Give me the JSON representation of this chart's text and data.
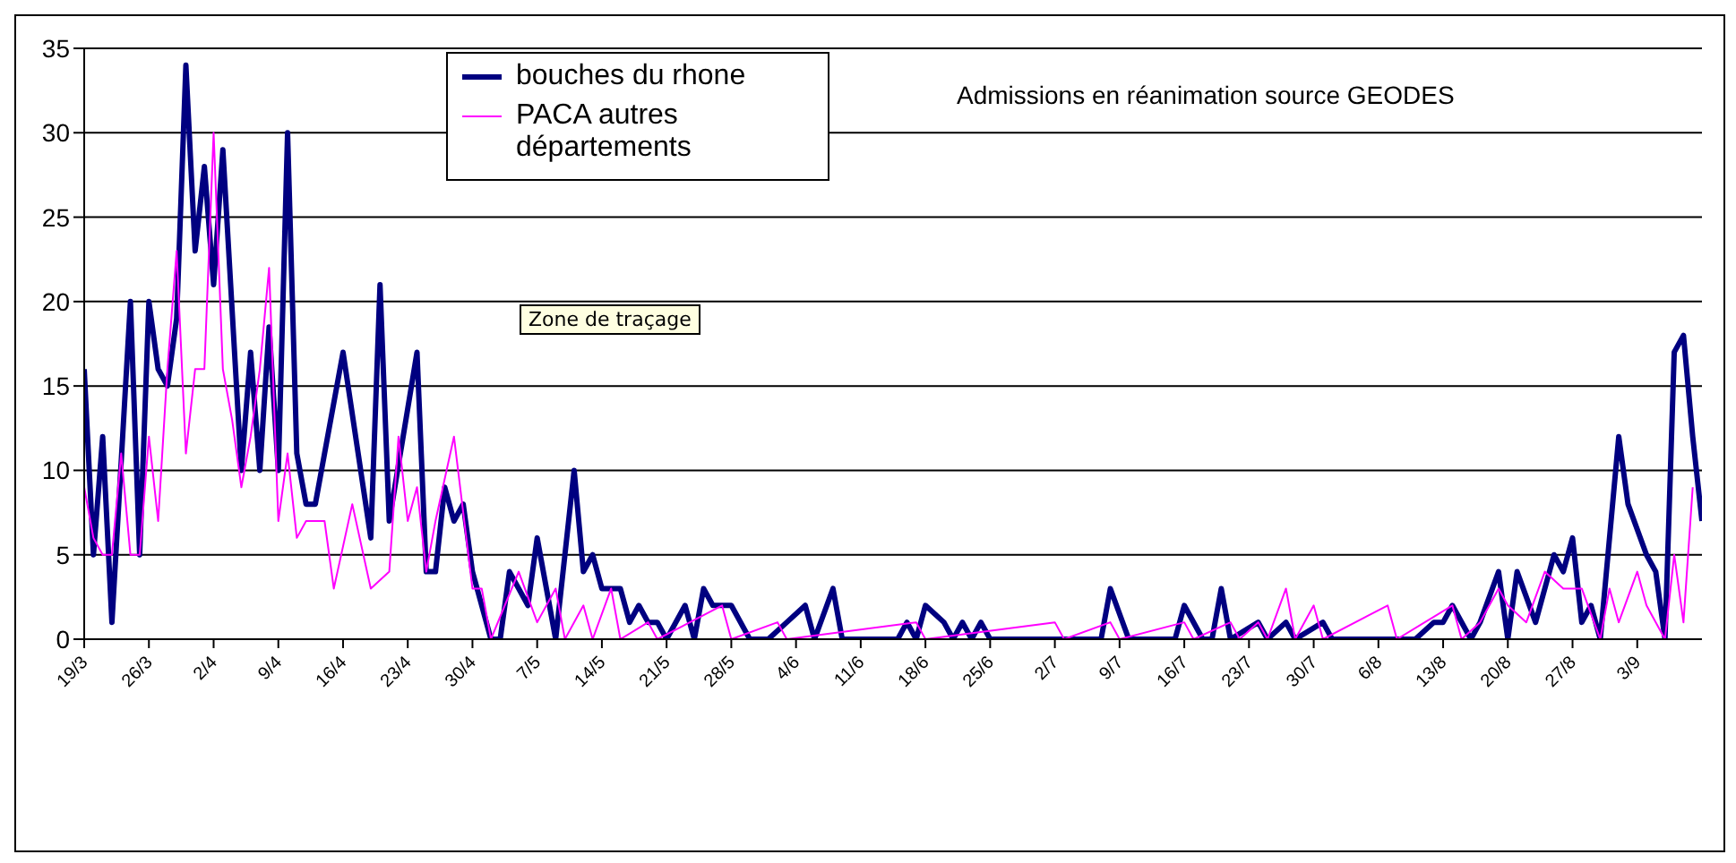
{
  "chart_data": {
    "type": "line",
    "title": "Admissions en réanimation source GEODES",
    "annotations": [
      "Zone de traçage"
    ],
    "xlim": [
      "--03-19",
      "--09-10"
    ],
    "xticks": [
      {
        "value": "--03-19",
        "label": "19/3"
      },
      {
        "value": "--03-26",
        "label": "26/3"
      },
      {
        "value": "--04-02",
        "label": "2/4"
      },
      {
        "value": "--04-09",
        "label": "9/4"
      },
      {
        "value": "--04-16",
        "label": "16/4"
      },
      {
        "value": "--04-23",
        "label": "23/4"
      },
      {
        "value": "--04-30",
        "label": "30/4"
      },
      {
        "value": "--05-07",
        "label": "7/5"
      },
      {
        "value": "--05-14",
        "label": "14/5"
      },
      {
        "value": "--05-21",
        "label": "21/5"
      },
      {
        "value": "--05-28",
        "label": "28/5"
      },
      {
        "value": "--06-04",
        "label": "4/6"
      },
      {
        "value": "--06-11",
        "label": "11/6"
      },
      {
        "value": "--06-18",
        "label": "18/6"
      },
      {
        "value": "--06-25",
        "label": "25/6"
      },
      {
        "value": "--07-02",
        "label": "2/7"
      },
      {
        "value": "--07-09",
        "label": "9/7"
      },
      {
        "value": "--07-16",
        "label": "16/7"
      },
      {
        "value": "--07-23",
        "label": "23/7"
      },
      {
        "value": "--07-30",
        "label": "30/7"
      },
      {
        "value": "--08-06",
        "label": "6/8"
      },
      {
        "value": "--08-13",
        "label": "13/8"
      },
      {
        "value": "--08-20",
        "label": "20/8"
      },
      {
        "value": "--08-27",
        "label": "27/8"
      },
      {
        "value": "--09-03",
        "label": "3/9"
      }
    ],
    "ylim": [
      0,
      35
    ],
    "yticks": [
      0,
      5,
      10,
      15,
      20,
      25,
      30,
      35
    ],
    "grid": "y",
    "legend": "top",
    "marker": "none",
    "line_style": "solid",
    "series": [
      {
        "name": "bouches du rhone",
        "color": "#000080",
        "x": [
          "--03-19",
          "--03-20",
          "--03-21",
          "--03-22",
          "--03-24",
          "--03-25",
          "--03-26",
          "--03-27",
          "--03-28",
          "--03-29",
          "--03-30",
          "--03-31",
          "--04-01",
          "--04-02",
          "--04-03",
          "--04-05",
          "--04-06",
          "--04-07",
          "--04-08",
          "--04-09",
          "--04-10",
          "--04-11",
          "--04-12",
          "--04-13",
          "--04-16",
          "--04-19",
          "--04-20",
          "--04-21",
          "--04-24",
          "--04-25",
          "--04-26",
          "--04-27",
          "--04-28",
          "--04-29",
          "--04-30",
          "--05-02",
          "--05-03",
          "--05-04",
          "--05-06",
          "--05-07",
          "--05-09",
          "--05-11",
          "--05-12",
          "--05-13",
          "--05-14",
          "--05-16",
          "--05-17",
          "--05-18",
          "--05-19",
          "--05-20",
          "--05-21",
          "--05-23",
          "--05-24",
          "--05-25",
          "--05-26",
          "--05-28",
          "--05-30",
          "--06-01",
          "--06-03",
          "--06-05",
          "--06-06",
          "--06-08",
          "--06-09",
          "--06-15",
          "--06-16",
          "--06-17",
          "--06-18",
          "--06-20",
          "--06-21",
          "--06-22",
          "--06-23",
          "--06-24",
          "--06-25",
          "--07-07",
          "--07-08",
          "--07-10",
          "--07-15",
          "--07-16",
          "--07-18",
          "--07-19",
          "--07-20",
          "--07-21",
          "--07-24",
          "--07-25",
          "--07-27",
          "--07-28",
          "--07-31",
          "--08-01",
          "--08-10",
          "--08-12",
          "--08-13",
          "--08-14",
          "--08-16",
          "--08-17",
          "--08-19",
          "--08-20",
          "--08-21",
          "--08-23",
          "--08-25",
          "--08-26",
          "--08-27",
          "--08-28",
          "--08-29",
          "--08-30",
          "--09-01",
          "--09-02",
          "--09-04",
          "--09-05",
          "--09-06",
          "--09-07",
          "--09-08",
          "--09-09",
          "--09-10"
        ],
        "values": [
          16,
          5,
          12,
          1,
          20,
          5,
          20,
          16,
          15,
          19,
          34,
          23,
          28,
          21,
          29,
          10,
          17,
          10,
          18.5,
          10,
          30,
          11,
          8,
          8,
          17,
          6,
          21,
          7,
          17,
          4,
          4,
          9,
          7,
          8,
          4,
          0,
          0,
          4,
          2,
          6,
          0,
          10,
          4,
          5,
          3,
          3,
          1,
          2,
          1,
          1,
          0,
          2,
          0,
          3,
          2,
          2,
          0,
          0,
          1,
          2,
          0,
          3,
          0,
          0,
          1,
          0,
          2,
          1,
          0,
          1,
          0,
          1,
          0,
          0,
          3,
          0,
          0,
          2,
          0,
          0,
          3,
          0,
          1,
          0,
          1,
          0,
          1,
          0,
          0,
          1,
          1,
          2,
          0,
          1,
          4,
          0,
          4,
          1,
          5,
          4,
          6,
          1,
          2,
          0,
          12,
          8,
          5,
          4,
          0,
          17,
          18,
          12,
          7
        ]
      },
      {
        "name": "PACA autres départements",
        "color": "#ff00ff",
        "x": [
          "--03-19",
          "--03-20",
          "--03-21",
          "--03-22",
          "--03-23",
          "--03-24",
          "--03-25",
          "--03-26",
          "--03-27",
          "--03-28",
          "--03-29",
          "--03-30",
          "--03-31",
          "--04-01",
          "--04-02",
          "--04-03",
          "--04-04",
          "--04-05",
          "--04-06",
          "--04-07",
          "--04-08",
          "--04-09",
          "--04-10",
          "--04-11",
          "--04-12",
          "--04-14",
          "--04-15",
          "--04-17",
          "--04-19",
          "--04-21",
          "--04-22",
          "--04-23",
          "--04-24",
          "--04-25",
          "--04-26",
          "--04-28",
          "--04-30",
          "--05-01",
          "--05-02",
          "--05-05",
          "--05-07",
          "--05-09",
          "--05-10",
          "--05-12",
          "--05-13",
          "--05-15",
          "--05-16",
          "--05-19",
          "--05-20",
          "--05-27",
          "--05-28",
          "--06-02",
          "--06-03",
          "--06-17",
          "--06-18",
          "--07-02",
          "--07-03",
          "--07-08",
          "--07-09",
          "--07-16",
          "--07-17",
          "--07-21",
          "--07-22",
          "--07-24",
          "--07-25",
          "--07-27",
          "--07-28",
          "--07-30",
          "--07-31",
          "--08-07",
          "--08-08",
          "--08-14",
          "--08-15",
          "--08-17",
          "--08-19",
          "--08-20",
          "--08-22",
          "--08-24",
          "--08-26",
          "--08-28",
          "--08-30",
          "--08-31",
          "--09-01",
          "--09-03",
          "--09-04",
          "--09-06",
          "--09-07",
          "--09-08",
          "--09-09"
        ],
        "values": [
          9,
          6,
          5,
          5,
          11,
          5,
          5,
          12,
          7,
          16,
          23,
          11,
          16,
          16,
          30,
          16,
          13,
          9,
          12,
          16,
          22,
          7,
          11,
          6,
          7,
          7,
          3,
          8,
          3,
          4,
          12,
          7,
          9,
          4,
          7,
          12,
          3,
          3,
          0,
          4,
          1,
          3,
          0,
          2,
          0,
          3,
          0,
          1,
          0,
          2,
          0,
          1,
          0,
          1,
          0,
          1,
          0,
          1,
          0,
          1,
          0,
          1,
          0,
          1,
          0,
          3,
          0,
          2,
          0,
          2,
          0,
          2,
          0,
          1,
          3,
          2,
          1,
          4,
          3,
          3,
          0,
          3,
          1,
          4,
          2,
          0,
          5,
          1,
          9
        ]
      }
    ]
  }
}
